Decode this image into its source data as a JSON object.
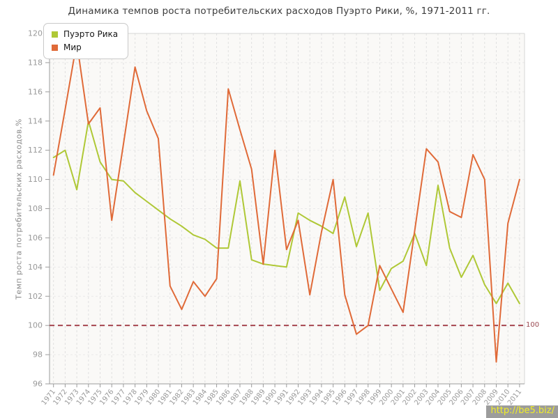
{
  "title": "Динамика темпов роста потребительских расходов Пуэрто Рики, %, 1971-2011 гг.",
  "y_axis": {
    "title": "Темп роста потребительских расходов,%",
    "min": 96,
    "max": 120,
    "step": 2,
    "tick_labels": [
      "96",
      "98",
      "100",
      "102",
      "104",
      "106",
      "108",
      "110",
      "112",
      "114",
      "116",
      "118",
      "120"
    ]
  },
  "valueline": {
    "value": 100,
    "label": "100",
    "color": "#a6454f",
    "label_color": "#9b4a52"
  },
  "watermark": {
    "text": "http://be5.biz/",
    "bg": "#9c9c9c",
    "fg": "#f1ee27"
  },
  "colors": {
    "plot_bg": "#faf9f7",
    "vgrid": "#e0e0e0",
    "hgrid": "#e9e9e9",
    "border": "#d6d6d6",
    "axis": "#9b9b9b",
    "tick_text": "#999999",
    "title_text": "#3d3d3d"
  },
  "chart_data": {
    "type": "line",
    "title": "Динамика темпов роста потребительских расходов Пуэрто Рики, %, 1971-2011 гг.",
    "xlabel": "",
    "ylabel": "Темп роста потребительских расходов,%",
    "ylim": [
      96,
      120
    ],
    "grid": true,
    "legend_position": "top-left",
    "x": [
      1971,
      1972,
      1973,
      1974,
      1975,
      1976,
      1977,
      1978,
      1979,
      1980,
      1981,
      1982,
      1983,
      1984,
      1985,
      1986,
      1987,
      1988,
      1989,
      1990,
      1991,
      1992,
      1993,
      1994,
      1995,
      1996,
      1997,
      1998,
      1999,
      2000,
      2001,
      2002,
      2003,
      2004,
      2005,
      2006,
      2007,
      2008,
      2009,
      2010,
      2011
    ],
    "series": [
      {
        "id": "puerto-rico",
        "name": "Пуэрто Рика",
        "color": "#afc836",
        "values": [
          111.5,
          112.0,
          109.3,
          114.0,
          111.2,
          110.0,
          109.9,
          109.1,
          108.5,
          107.9,
          107.3,
          106.8,
          106.2,
          105.9,
          105.3,
          105.3,
          109.9,
          104.5,
          104.2,
          104.1,
          104.0,
          107.7,
          107.2,
          106.8,
          106.3,
          108.8,
          105.4,
          107.7,
          102.4,
          103.9,
          104.4,
          106.3,
          104.1,
          109.6,
          105.3,
          103.3,
          104.8,
          102.8,
          101.5,
          102.9,
          101.5
        ]
      },
      {
        "id": "world",
        "name": "Мир",
        "color": "#e06a38",
        "values": [
          110.3,
          114.8,
          119.4,
          113.8,
          114.9,
          107.2,
          112.4,
          117.7,
          114.7,
          112.8,
          102.7,
          101.1,
          103.0,
          102.0,
          103.2,
          116.2,
          113.4,
          110.7,
          104.2,
          112.0,
          105.2,
          107.2,
          102.1,
          106.4,
          110.0,
          102.1,
          99.4,
          100.0,
          104.1,
          102.5,
          100.9,
          106.5,
          112.1,
          111.2,
          107.8,
          107.4,
          111.7,
          110.0,
          97.5,
          107.0,
          110.0
        ]
      }
    ]
  }
}
